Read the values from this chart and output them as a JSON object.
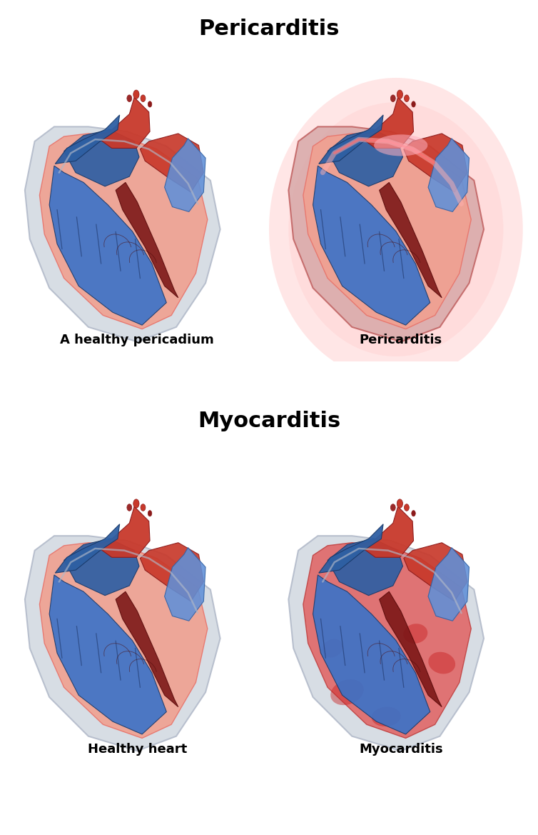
{
  "title_pericarditis": "Pericarditis",
  "title_myocarditis": "Myocarditis",
  "label_healthy_pericardium": "A healthy pericadium",
  "label_pericarditis": "Pericarditis",
  "label_healthy_heart": "Healthy heart",
  "label_myocarditis": "Myocarditis",
  "title_fontsize": 22,
  "label_fontsize": 13,
  "bg_color": "#ffffff",
  "heart_red": "#C8392B",
  "heart_red_light": "#E8736A",
  "heart_red_pale": "#F0A090",
  "heart_blue": "#2E5FA3",
  "heart_blue_mid": "#3A72C8",
  "heart_blue_light": "#6090D8",
  "pericardium_gray": "#B0B8C8",
  "pericardium_gray_light": "#D0D8E0",
  "inflammation_red": "#FF6060",
  "inflammation_pale": "#FFB0A0",
  "dark_red": "#8B1A1A",
  "figure_width": 7.54,
  "figure_height": 11.69,
  "dpi": 100
}
